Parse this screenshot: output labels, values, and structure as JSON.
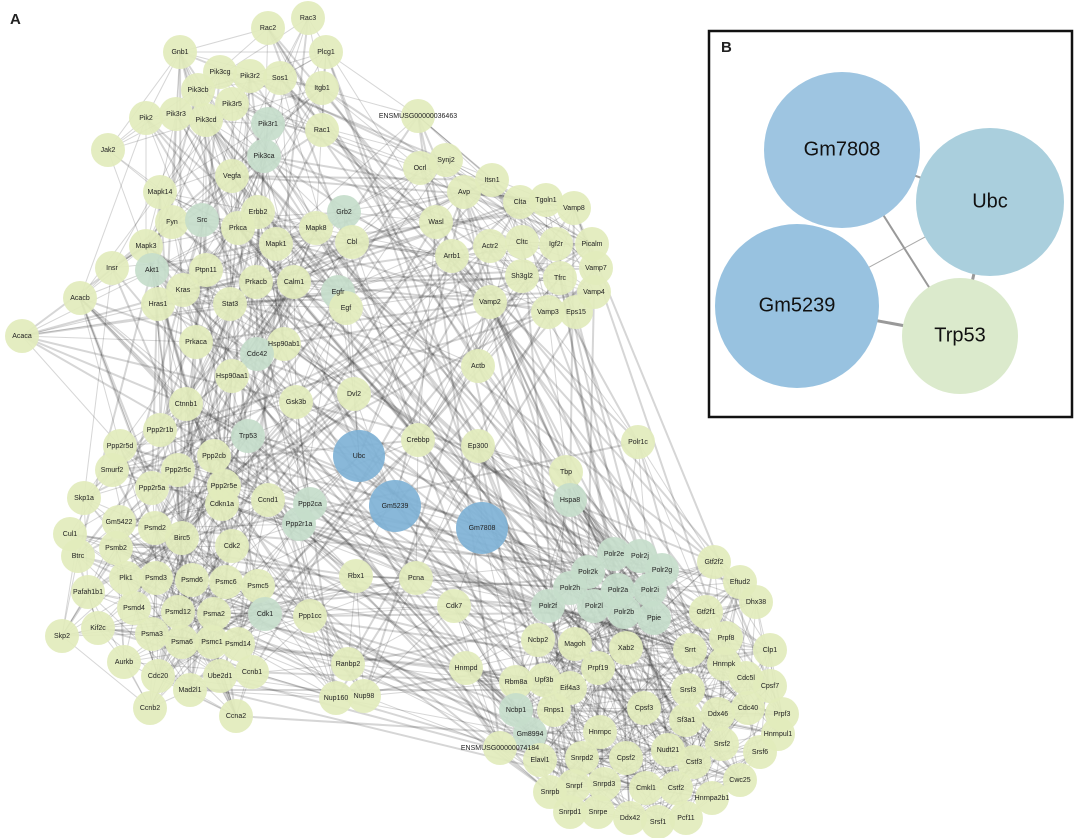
{
  "panel_a": {
    "label": "A",
    "nodes": [
      "Rac2",
      "Rac3",
      "Gnb1",
      "Plcg1",
      "Pik3cg",
      "Pik3r2",
      "Sos1",
      "Pik3cb",
      "Pik3r5",
      "Itgb1",
      "Pik3r3",
      "Pik3cd",
      "Pik2",
      "Pik3r1",
      "Rac1",
      "ENSMUSG00000036463",
      "Jak2",
      "Pik3ca",
      "Vegfa",
      "Ocrl",
      "Synj2",
      "Itsn1",
      "Avp",
      "Mapk14",
      "Clta",
      "Tgoln1",
      "Vamp8",
      "Fyn",
      "Src",
      "Erbb2",
      "Prkca",
      "Mapk8",
      "Grb2",
      "Wasl",
      "Mapk1",
      "Mapk3",
      "Cbl",
      "Actr2",
      "Cltc",
      "Igf2r",
      "Picalm",
      "Arrb1",
      "Insr",
      "Akt1",
      "Ptpn11",
      "Vamp7",
      "Kras",
      "Prkacb",
      "Calm1",
      "Egfr",
      "Sh3gl2",
      "Tfrc",
      "Vamp4",
      "Acacb",
      "Hras1",
      "Stat3",
      "Egf",
      "Vamp2",
      "Vamp3",
      "Eps15",
      "Acaca",
      "Prkaca",
      "Hsp90ab1",
      "Cdc42",
      "Actb",
      "Hsp90aa1",
      "Ctnnb1",
      "Gsk3b",
      "Dvl2",
      "Ppp2r1b",
      "Trp53",
      "Crebbp",
      "Ep300",
      "Polr1c",
      "Ubc",
      "Ppp2r5d",
      "Ppp2cb",
      "Smurf2",
      "Ppp2r5c",
      "Tbp",
      "Ppp2r5a",
      "Ppp2r5e",
      "Skp1a",
      "Cdkn1a",
      "Ccnd1",
      "Ppp2ca",
      "Gm5239",
      "Hspa8",
      "Gm5422",
      "Psmd2",
      "Ppp2r1a",
      "Gm7808",
      "Cul1",
      "Birc5",
      "Cdk2",
      "Psmb2",
      "Btrc",
      "Polr2e",
      "Polr2j",
      "Polr2k",
      "Polr2g",
      "Gtf2f2",
      "Plk1",
      "Psmd3",
      "Psmd6",
      "Psmc6",
      "Psmc5",
      "Rbx1",
      "Pcna",
      "Polr2h",
      "Polr2a",
      "Polr2i",
      "Eftud2",
      "Pafah1b1",
      "Cdk7",
      "Dhx38",
      "Psmd4",
      "Psmd12",
      "Psma2",
      "Cdk1",
      "Ppp1cc",
      "Polr2f",
      "Polr2l",
      "Polr2b",
      "Ppie",
      "Gtf2f1",
      "Skp2",
      "Kif2c",
      "Psma3",
      "Psma6",
      "Psmc1",
      "Psmd14",
      "Prpf8",
      "Clp1",
      "Ncbp2",
      "Magoh",
      "Xab2",
      "Srrt",
      "Aurkb",
      "Ranbp2",
      "Hnrnpk",
      "Hnrnpd",
      "Prpf19",
      "Cdc20",
      "Ube2d1",
      "Ccnb1",
      "Cdc5l",
      "Rbm8a",
      "Upf3b",
      "Eif4a3",
      "Cpsf7",
      "Mad2l1",
      "Srsf3",
      "Nup160",
      "Nup98",
      "Ccnb2",
      "Cdc40",
      "Prpf3",
      "Ncbp1",
      "Rnps1",
      "Cpsf3",
      "Ddx46",
      "Ccna2",
      "Sf3a1",
      "Hnrnpul1",
      "Gm8994",
      "Hnrnpc",
      "Srsf2",
      "ENSMUSG00000074184",
      "Srsf6",
      "Nudt21",
      "Elavl1",
      "Snrpd2",
      "Cpsf2",
      "Cstf3",
      "Cwc25",
      "Snrpf",
      "Snrpd3",
      "Cmkl1",
      "Cstf2",
      "Hnrnpa2b1",
      "Snrpb",
      "Snrpd1",
      "Snrpe",
      "Ddx42",
      "Srsf1",
      "Pcf11"
    ]
  },
  "panel_b": {
    "label": "B",
    "nodes": [
      "Gm7808",
      "Ubc",
      "Gm5239",
      "Trp53"
    ]
  }
}
